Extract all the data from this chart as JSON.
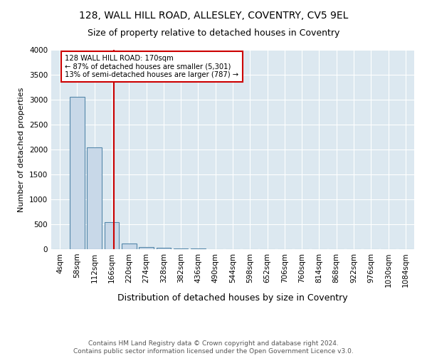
{
  "title1": "128, WALL HILL ROAD, ALLESLEY, COVENTRY, CV5 9EL",
  "title2": "Size of property relative to detached houses in Coventry",
  "xlabel": "Distribution of detached houses by size in Coventry",
  "ylabel": "Number of detached properties",
  "footnote": "Contains HM Land Registry data © Crown copyright and database right 2024.\nContains public sector information licensed under the Open Government Licence v3.0.",
  "bin_labels": [
    "4sqm",
    "58sqm",
    "112sqm",
    "166sqm",
    "220sqm",
    "274sqm",
    "328sqm",
    "382sqm",
    "436sqm",
    "490sqm",
    "544sqm",
    "598sqm",
    "652sqm",
    "706sqm",
    "760sqm",
    "814sqm",
    "868sqm",
    "922sqm",
    "976sqm",
    "1030sqm",
    "1084sqm"
  ],
  "bar_values": [
    5,
    3050,
    2050,
    540,
    120,
    50,
    30,
    18,
    10,
    6,
    3,
    2,
    1,
    1,
    0,
    0,
    0,
    0,
    0,
    0,
    0
  ],
  "bar_color": "#c8d8e8",
  "bar_edge_color": "#5588aa",
  "property_line_label": "128 WALL HILL ROAD: 170sqm",
  "annotation_line1": "← 87% of detached houses are smaller (5,301)",
  "annotation_line2": "13% of semi-detached houses are larger (787) →",
  "annotation_box_color": "#cc0000",
  "vline_color": "#cc0000",
  "vline_x": 3.12,
  "ylim": [
    0,
    4000
  ],
  "yticks": [
    0,
    500,
    1000,
    1500,
    2000,
    2500,
    3000,
    3500,
    4000
  ],
  "figure_bg_color": "#ffffff",
  "plot_bg_color": "#dce8f0",
  "grid_color": "#ffffff",
  "title1_fontsize": 10,
  "title2_fontsize": 9,
  "xlabel_fontsize": 9,
  "ylabel_fontsize": 8,
  "footnote_fontsize": 6.5,
  "tick_fontsize": 7.5
}
